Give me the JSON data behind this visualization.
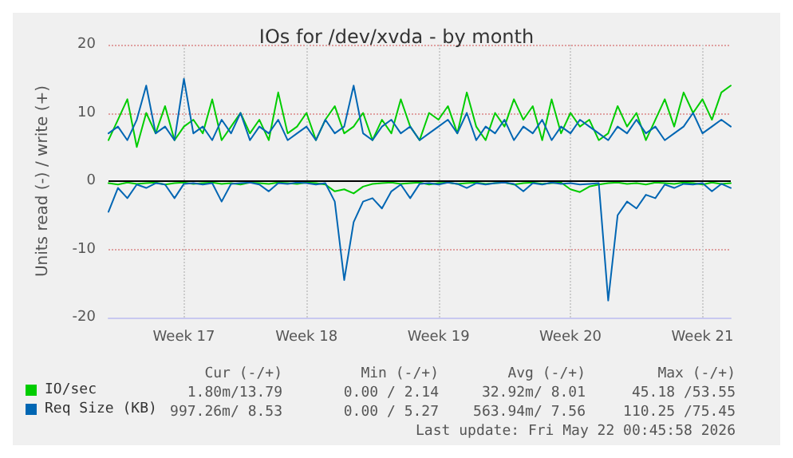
{
  "chart_data": {
    "type": "line",
    "title": "IOs for /dev/xvda - by month",
    "ylabel": "Units read (-) / write (+)",
    "categories": [
      null,
      null,
      null,
      null,
      null,
      null,
      null,
      null,
      "Week 17",
      null,
      null,
      null,
      null,
      null,
      null,
      null,
      null,
      null,
      null,
      null,
      null,
      "Week 18",
      null,
      null,
      null,
      null,
      null,
      null,
      null,
      null,
      null,
      null,
      null,
      null,
      null,
      "Week 19",
      null,
      null,
      null,
      null,
      null,
      null,
      null,
      null,
      null,
      null,
      null,
      null,
      null,
      "Week 20",
      null,
      null,
      null,
      null,
      null,
      null,
      null,
      null,
      null,
      null,
      null,
      null,
      null,
      "Week 21",
      null,
      null,
      null
    ],
    "ref_lines": [
      {
        "axis": "y",
        "value": 0,
        "color": "#000000"
      }
    ],
    "ylim": [
      -20,
      20
    ],
    "yticks": [
      -20,
      -10,
      0,
      10,
      20
    ],
    "grid": true,
    "legend": "bottom left",
    "marker": "none",
    "line_style": "solid",
    "series": [
      {
        "name": "IO/sec",
        "color": "#00cc00",
        "values": [
          6,
          9,
          12,
          5,
          10,
          7,
          11,
          6,
          8,
          9,
          7,
          12,
          6,
          8,
          10,
          7,
          9,
          6,
          13,
          7,
          8,
          10,
          6,
          9,
          11,
          7,
          8,
          10,
          6,
          9,
          7,
          12,
          8,
          6,
          10,
          9,
          11,
          7,
          13,
          8,
          6,
          10,
          8,
          12,
          9,
          11,
          6,
          12,
          7,
          10,
          8,
          9,
          6,
          7,
          11,
          8,
          10,
          6,
          9,
          12,
          8,
          13,
          10,
          12,
          9,
          13,
          14
        ]
      },
      {
        "color": "#00cc00",
        "values": [
          -0.3,
          -0.5,
          -0.2,
          -0.4,
          -0.3,
          -0.2,
          -0.5,
          -0.3,
          -0.2,
          -0.4,
          -0.3,
          -0.2,
          -0.4,
          -0.3,
          -0.5,
          -0.2,
          -0.3,
          -0.4,
          -0.2,
          -0.3,
          -0.4,
          -0.2,
          -0.3,
          -0.5,
          -1.5,
          -1.2,
          -1.8,
          -0.8,
          -0.4,
          -0.3,
          -0.2,
          -0.4,
          -0.3,
          -0.2,
          -0.5,
          -0.3,
          -0.2,
          -0.4,
          -0.3,
          -0.2,
          -0.4,
          -0.3,
          -0.2,
          -0.5,
          -0.3,
          -0.2,
          -0.4,
          -0.3,
          -0.2,
          -1.2,
          -1.6,
          -0.8,
          -0.5,
          -0.3,
          -0.2,
          -0.4,
          -0.3,
          -0.5,
          -0.2,
          -0.3,
          -0.4,
          -0.2,
          -0.3,
          -0.5,
          -0.2,
          -0.4,
          -0.3
        ]
      },
      {
        "name": "Req Size (KB)",
        "color": "#0066b3",
        "values": [
          7,
          8,
          6,
          9,
          14,
          7,
          8,
          6,
          15,
          7,
          8,
          6,
          9,
          7,
          10,
          6,
          8,
          7,
          9,
          6,
          7,
          8,
          6,
          9,
          7,
          8,
          14,
          7,
          6,
          8,
          9,
          7,
          8,
          6,
          7,
          8,
          9,
          7,
          10,
          6,
          8,
          7,
          9,
          6,
          8,
          7,
          9,
          6,
          8,
          7,
          9,
          8,
          7,
          6,
          8,
          7,
          9,
          7,
          8,
          6,
          7,
          8,
          10,
          7,
          8,
          9,
          8
        ]
      },
      {
        "color": "#0066b3",
        "values": [
          -4.5,
          -1,
          -2.5,
          -0.5,
          -1,
          -0.3,
          -0.5,
          -2.5,
          -0.4,
          -0.3,
          -0.5,
          -0.3,
          -3,
          -0.4,
          -0.3,
          -0.2,
          -0.5,
          -1.5,
          -0.3,
          -0.4,
          -0.2,
          -0.3,
          -0.5,
          -0.3,
          -3,
          -14.5,
          -6,
          -3,
          -2.5,
          -4,
          -1.5,
          -0.5,
          -2.5,
          -0.4,
          -0.3,
          -0.5,
          -0.2,
          -0.4,
          -1,
          -0.3,
          -0.5,
          -0.3,
          -0.2,
          -0.4,
          -1.5,
          -0.3,
          -0.5,
          -0.2,
          -0.4,
          -0.3,
          -0.5,
          -0.4,
          -0.3,
          -17.5,
          -5,
          -3,
          -4,
          -2,
          -2.5,
          -0.5,
          -1,
          -0.4,
          -0.5,
          -0.3,
          -1.5,
          -0.4,
          -1
        ]
      }
    ],
    "annotations": [
      "Cur (-/+)",
      "Min (-/+)",
      "Avg (-/+)",
      "Max (-/+)",
      "1.80m/13.79",
      "0.00 / 2.14",
      "32.92m/ 8.01",
      "45.18 /53.55",
      "997.26m/ 8.53",
      "0.00 / 5.27",
      "563.94m/ 7.56",
      "110.25 /75.45",
      "Last update: Fri May 22 00:45:58 2026"
    ]
  }
}
